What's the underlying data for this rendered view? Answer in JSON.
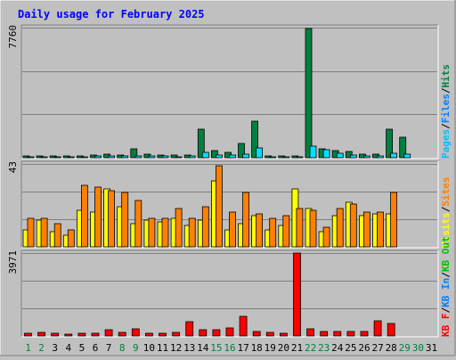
{
  "title": "Daily usage for February 2025",
  "colors": {
    "background": "#c0c0c0",
    "title": "#0000ff",
    "hits": "#008040",
    "files": "#00e0ff",
    "pages": "#00c0ff",
    "visits": "#ffff00",
    "sites": "#ff8000",
    "kb_in": "#0080ff",
    "kb_out": "#00c000",
    "kb_f": "#ff0000",
    "weekend": "#008040"
  },
  "chart_data": [
    {
      "type": "bar",
      "name": "top",
      "ymax_label": "7760",
      "ymax": 7760,
      "ylim": [
        0,
        7760
      ],
      "legend": [
        {
          "label": "Pages",
          "color": "#00c0ff"
        },
        {
          "label": "/",
          "color": "#000000"
        },
        {
          "label": "Files",
          "color": "#0080ff"
        },
        {
          "label": "/",
          "color": "#000000"
        },
        {
          "label": "Hits",
          "color": "#008040"
        }
      ],
      "categories": [
        "1",
        "2",
        "3",
        "4",
        "5",
        "6",
        "7",
        "8",
        "9",
        "10",
        "11",
        "12",
        "13",
        "14",
        "15",
        "16",
        "17",
        "18",
        "19",
        "20",
        "21",
        "22",
        "23",
        "24",
        "25",
        "26",
        "27",
        "28",
        "29",
        "30",
        "31"
      ],
      "series": [
        {
          "key": "hits",
          "values": [
            80,
            100,
            90,
            80,
            120,
            150,
            200,
            170,
            520,
            220,
            160,
            140,
            180,
            1700,
            450,
            300,
            850,
            2200,
            100,
            120,
            90,
            7700,
            550,
            450,
            350,
            230,
            190,
            1700,
            1200,
            null,
            null
          ]
        },
        {
          "key": "files",
          "values": [
            40,
            50,
            45,
            40,
            60,
            80,
            100,
            90,
            130,
            90,
            80,
            70,
            90,
            300,
            140,
            150,
            200,
            600,
            50,
            60,
            50,
            700,
            500,
            250,
            170,
            130,
            100,
            250,
            200,
            null,
            null
          ]
        }
      ]
    },
    {
      "type": "bar",
      "name": "middle",
      "ymax_label": "43",
      "ymax": 43,
      "ylim": [
        0,
        43
      ],
      "legend": [
        {
          "label": "Visits",
          "color": "#ffff00"
        },
        {
          "label": "/",
          "color": "#000000"
        },
        {
          "label": "Sites",
          "color": "#ff8000"
        }
      ],
      "categories": [
        "1",
        "2",
        "3",
        "4",
        "5",
        "6",
        "7",
        "8",
        "9",
        "10",
        "11",
        "12",
        "13",
        "14",
        "15",
        "16",
        "17",
        "18",
        "19",
        "20",
        "21",
        "22",
        "23",
        "24",
        "25",
        "26",
        "27",
        "28",
        "29",
        "30",
        "31"
      ],
      "series": [
        {
          "key": "visits",
          "values": [
            9,
            14,
            8,
            6,
            19,
            18,
            30,
            21,
            12,
            14,
            13,
            15,
            11,
            14,
            34,
            9,
            12,
            16,
            9,
            11,
            30,
            20,
            8,
            16,
            23,
            16,
            17,
            17,
            null,
            null,
            null
          ]
        },
        {
          "key": "sites",
          "values": [
            15,
            15,
            12,
            9,
            32,
            31,
            29,
            28,
            24,
            15,
            15,
            20,
            15,
            21,
            42,
            18,
            28,
            17,
            15,
            16,
            20,
            19,
            10,
            20,
            22,
            18,
            18,
            28,
            null,
            null,
            null
          ]
        }
      ]
    },
    {
      "type": "bar",
      "name": "bottom",
      "ymax_label": "3971",
      "ymax": 3971,
      "ylim": [
        0,
        3971
      ],
      "legend": [
        {
          "label": "KB F",
          "color": "#ff0000"
        },
        {
          "label": "/",
          "color": "#000000"
        },
        {
          "label": "KB In",
          "color": "#0080ff"
        },
        {
          "label": "/",
          "color": "#000000"
        },
        {
          "label": "KB Out",
          "color": "#00c000"
        }
      ],
      "categories": [
        "1",
        "2",
        "3",
        "4",
        "5",
        "6",
        "7",
        "8",
        "9",
        "10",
        "11",
        "12",
        "13",
        "14",
        "15",
        "16",
        "17",
        "18",
        "19",
        "20",
        "21",
        "22",
        "23",
        "24",
        "25",
        "26",
        "27",
        "28",
        "29",
        "30",
        "31"
      ],
      "series": [
        {
          "key": "kb_f",
          "values": [
            120,
            150,
            130,
            100,
            130,
            140,
            320,
            170,
            330,
            140,
            140,
            170,
            700,
            280,
            300,
            380,
            950,
            210,
            180,
            120,
            3971,
            330,
            230,
            210,
            210,
            200,
            720,
            600,
            null,
            null,
            null
          ]
        }
      ]
    }
  ],
  "x_labels": [
    {
      "t": "1",
      "w": true
    },
    {
      "t": "2",
      "w": true
    },
    {
      "t": "3",
      "w": false
    },
    {
      "t": "4",
      "w": false
    },
    {
      "t": "5",
      "w": false
    },
    {
      "t": "6",
      "w": false
    },
    {
      "t": "7",
      "w": false
    },
    {
      "t": "8",
      "w": true
    },
    {
      "t": "9",
      "w": true
    },
    {
      "t": "10",
      "w": false
    },
    {
      "t": "11",
      "w": false
    },
    {
      "t": "12",
      "w": false
    },
    {
      "t": "13",
      "w": false
    },
    {
      "t": "14",
      "w": false
    },
    {
      "t": "15",
      "w": true
    },
    {
      "t": "16",
      "w": true
    },
    {
      "t": "17",
      "w": false
    },
    {
      "t": "18",
      "w": false
    },
    {
      "t": "19",
      "w": false
    },
    {
      "t": "20",
      "w": false
    },
    {
      "t": "21",
      "w": false
    },
    {
      "t": "22",
      "w": true
    },
    {
      "t": "23",
      "w": true
    },
    {
      "t": "24",
      "w": false
    },
    {
      "t": "25",
      "w": false
    },
    {
      "t": "26",
      "w": false
    },
    {
      "t": "27",
      "w": false
    },
    {
      "t": "28",
      "w": false
    },
    {
      "t": "29",
      "w": true
    },
    {
      "t": "30",
      "w": true
    },
    {
      "t": "31",
      "w": false
    }
  ]
}
